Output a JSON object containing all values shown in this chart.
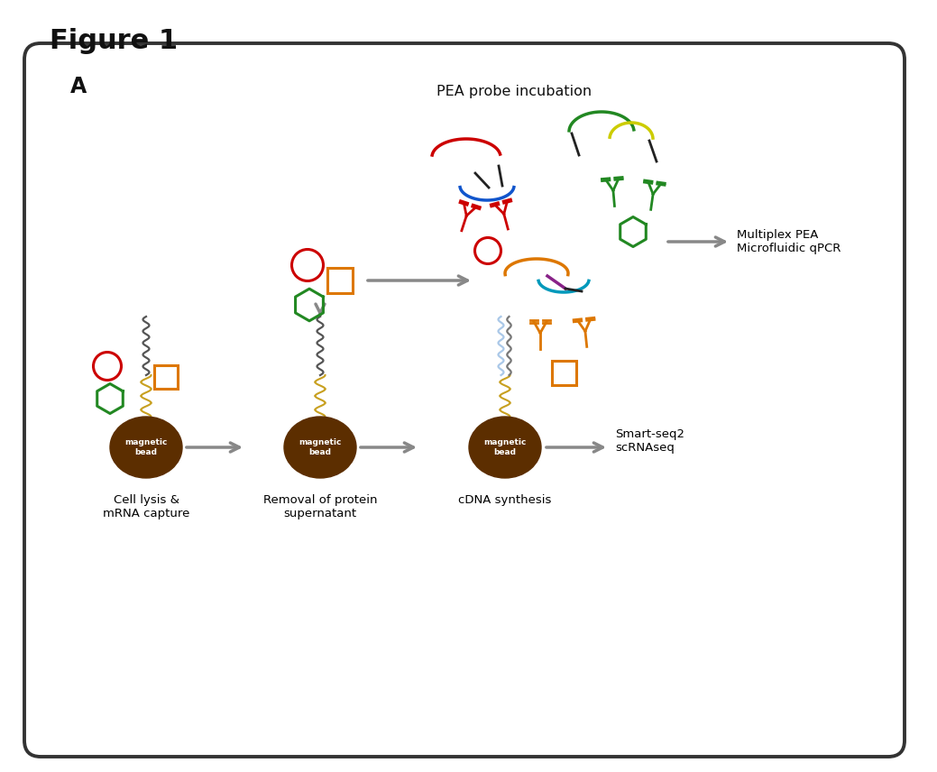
{
  "title": "Figure 1",
  "panel_label": "A",
  "background_color": "#ffffff",
  "box_color": "#333333",
  "bead_color": "#5c2e00",
  "arrow_color": "#888888",
  "coil_color": "#c8a020",
  "red_color": "#cc0000",
  "green_color": "#228822",
  "orange_color": "#dd7700",
  "blue_color": "#1155cc",
  "yellow_color": "#cccc00",
  "purple_color": "#882288",
  "cyan_color": "#0099bb",
  "dark_color": "#111111",
  "black_color": "#222222",
  "label_pea": "PEA probe incubation",
  "label_multiplex": "Multiplex PEA\nMicrofluidic qPCR",
  "label_cell": "Cell lysis &\nmRNA capture",
  "label_removal": "Removal of protein\nsupernatant",
  "label_cdna": "cDNA synthesis",
  "label_smart": "Smart-seq2\nscRNAseq",
  "label_mag": "magnetic\nbead",
  "fig_width": 10.39,
  "fig_height": 8.56,
  "dpi": 100
}
